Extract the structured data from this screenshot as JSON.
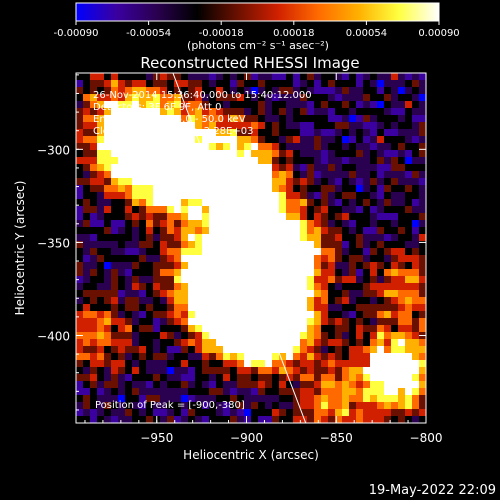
{
  "colorbar": {
    "tick_labels": [
      "-0.00090",
      "-0.00054",
      "-0.00018",
      "0.00018",
      "0.00054",
      "0.00090"
    ],
    "tick_values": [
      -0.0009,
      -0.00054,
      -0.00018,
      0.00018,
      0.00054,
      0.0009
    ],
    "range": [
      -0.0009,
      0.0009
    ],
    "units_label": "(photons cm⁻² s⁻¹ asec⁻²)"
  },
  "chart_data": {
    "type": "heatmap",
    "title": "Reconstructed RHESSI Image",
    "xlabel": "Heliocentric X (arcsec)",
    "ylabel": "Heliocentric Y (arcsec)",
    "xlim": [
      -995,
      -800
    ],
    "ylim": [
      -447,
      -259
    ],
    "x_ticks": [
      -950,
      -900,
      -850,
      -800
    ],
    "x_tick_labels": [
      "−950",
      "−900",
      "−850",
      "−800"
    ],
    "y_ticks": [
      -300,
      -350,
      -400
    ],
    "y_tick_labels": [
      "−300",
      "−350",
      "−400"
    ],
    "annotations": [
      "26-Nov-2014 15:36:40.000 to 15:40:12.000",
      "Detectors: 3F 6F 9F, Att 0",
      "Energy Range: 25.0 - 50.0 keV",
      "Clean     Total counts: 2.28E+03"
    ],
    "peak_label": "Position of Peak = [-900,-380]",
    "peak_position": [
      -900,
      -380
    ],
    "limb_line": [
      [
        -941,
        -259
      ],
      [
        -867,
        -447
      ]
    ],
    "colormap": [
      "#0000ff",
      "#3a00a0",
      "#2a0050",
      "#000000",
      "#6a1000",
      "#d02000",
      "#ff6a00",
      "#ffb000",
      "#ffff40",
      "#ffffff"
    ]
  },
  "timestamp": "19-May-2022 22:09"
}
